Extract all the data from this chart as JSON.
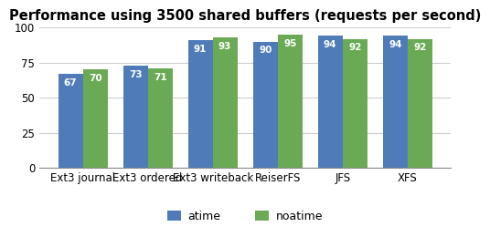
{
  "title": "Performance using 3500 shared buffers (requests per second)",
  "categories": [
    "Ext3 journal",
    "Ext3 ordered",
    "Ext3 writeback",
    "ReiserFS",
    "JFS",
    "XFS"
  ],
  "atime": [
    67,
    73,
    91,
    90,
    94,
    94
  ],
  "noatime": [
    70,
    71,
    93,
    95,
    92,
    92
  ],
  "bar_color_atime": "#4f7cb8",
  "bar_color_noatime": "#6aaa55",
  "ylim": [
    0,
    100
  ],
  "yticks": [
    0,
    25,
    50,
    75,
    100
  ],
  "bar_width": 0.38,
  "label_atime": "atime",
  "label_noatime": "noatime",
  "title_fontsize": 10.5,
  "axis_fontsize": 8.5,
  "legend_fontsize": 9,
  "value_label_fontsize": 7.5,
  "background_color": "#ffffff",
  "grid_color": "#cccccc"
}
